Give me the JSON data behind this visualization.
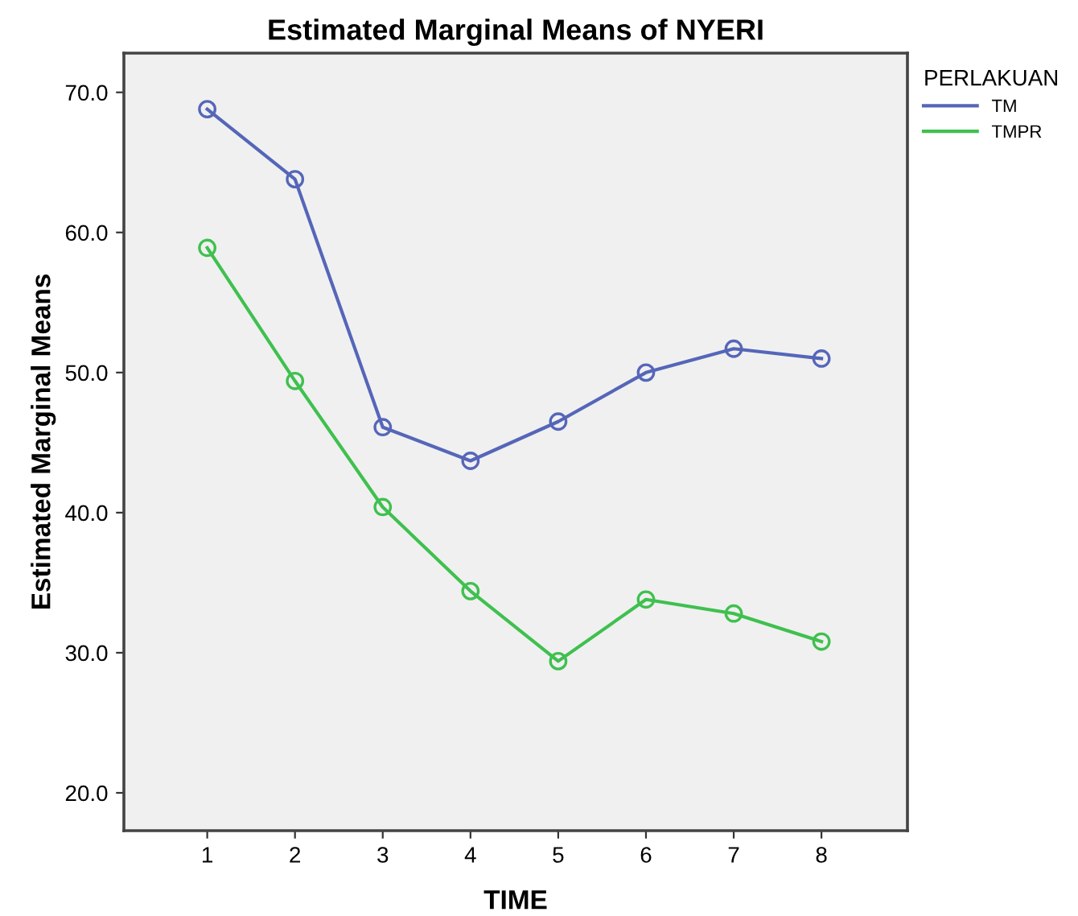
{
  "chart_data": {
    "type": "line",
    "title": "Estimated Marginal Means of NYERI",
    "xlabel": "TIME",
    "ylabel": "Estimated Marginal Means",
    "legend_title": "PERLAKUAN",
    "categories": [
      "1",
      "2",
      "3",
      "4",
      "5",
      "6",
      "7",
      "8"
    ],
    "series": [
      {
        "name": "TM",
        "color": "#5566b9",
        "values": [
          68.8,
          63.8,
          46.1,
          43.7,
          46.5,
          50.0,
          51.7,
          51.0
        ]
      },
      {
        "name": "TMPR",
        "color": "#3fc04f",
        "values": [
          58.9,
          49.4,
          40.4,
          34.4,
          29.4,
          33.8,
          32.8,
          30.8
        ]
      }
    ],
    "ylim": [
      17.3,
      72.8
    ],
    "yticks": [
      {
        "value": 20,
        "label": "20.0"
      },
      {
        "value": 30,
        "label": "30.0"
      },
      {
        "value": 40,
        "label": "40.0"
      },
      {
        "value": 50,
        "label": "50.0"
      },
      {
        "value": 60,
        "label": "60.0"
      },
      {
        "value": 70,
        "label": "70.0"
      }
    ],
    "grid": false,
    "legend": "top right",
    "marker": "circle",
    "line_style": "solid"
  }
}
